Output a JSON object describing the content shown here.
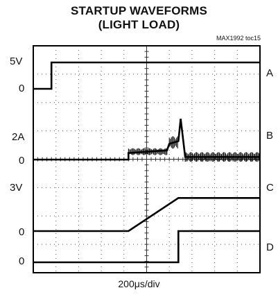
{
  "title_line1": "STARTUP WAVEFORMS",
  "title_line2": "(LIGHT LOAD)",
  "figure_id": "MAX1992 toc15",
  "x_axis_label": "200μs/div",
  "y_labels": {
    "a_high": "5V",
    "a_zero": "0",
    "b_high": "2A",
    "b_zero": "0",
    "c_high": "3V",
    "c_zero": "0",
    "d_zero": "0"
  },
  "channel_labels": {
    "a": "A",
    "b": "B",
    "c": "C",
    "d": "D"
  },
  "chart_data": {
    "type": "line",
    "title": "STARTUP WAVEFORMS (LIGHT LOAD)",
    "xlabel": "200μs/div",
    "x_unit": "div",
    "x_range": [
      0,
      10
    ],
    "grid": true,
    "grid_divisions": {
      "x": 10,
      "y": 8
    },
    "series": [
      {
        "name": "A",
        "scale": "5V",
        "points": [
          [
            0,
            0
          ],
          [
            0.8,
            0
          ],
          [
            0.8,
            5
          ],
          [
            10,
            5
          ]
        ]
      },
      {
        "name": "B",
        "scale": "2A",
        "points": [
          [
            0,
            0
          ],
          [
            4.2,
            0
          ],
          [
            4.2,
            0.5
          ],
          [
            5.9,
            0.7
          ],
          [
            6,
            1.2
          ],
          [
            6.4,
            1.4
          ],
          [
            6.5,
            3.1
          ],
          [
            6.7,
            0.2
          ],
          [
            10,
            0.2
          ]
        ]
      },
      {
        "name": "C",
        "scale": "3V",
        "points": [
          [
            0,
            0
          ],
          [
            4.2,
            0
          ],
          [
            6.4,
            2.6
          ],
          [
            10,
            2.6
          ]
        ]
      },
      {
        "name": "D",
        "scale": "",
        "points": [
          [
            0,
            0
          ],
          [
            6.4,
            0
          ],
          [
            6.4,
            1
          ],
          [
            10,
            1
          ]
        ]
      }
    ]
  }
}
